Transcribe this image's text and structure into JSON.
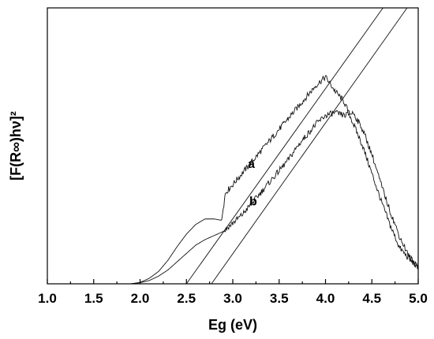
{
  "chart_data": {
    "type": "line",
    "title": "",
    "xlabel": "Eg (eV)",
    "ylabel": "[F(R∞)hν]²",
    "xlim": [
      1.0,
      5.0
    ],
    "ylim": [
      0,
      1.0
    ],
    "x_ticks": [
      "1.0",
      "1.5",
      "2.0",
      "2.5",
      "3.0",
      "3.5",
      "4.0",
      "4.5",
      "5.0"
    ],
    "y_ticks_shown": false,
    "grid": false,
    "legend": "none",
    "series": [
      {
        "name": "a",
        "x": [
          1.9,
          2.0,
          2.1,
          2.2,
          2.3,
          2.4,
          2.5,
          2.6,
          2.7,
          2.8,
          2.88,
          2.92,
          3.0,
          3.1,
          3.2,
          3.3,
          3.4,
          3.5,
          3.6,
          3.7,
          3.8,
          3.9,
          4.0,
          4.1,
          4.2,
          4.3,
          4.4,
          4.5,
          4.6,
          4.7,
          4.8,
          4.9,
          5.0
        ],
        "y": [
          0.0,
          0.005,
          0.02,
          0.045,
          0.085,
          0.135,
          0.18,
          0.215,
          0.235,
          0.235,
          0.23,
          0.33,
          0.36,
          0.4,
          0.44,
          0.48,
          0.52,
          0.56,
          0.6,
          0.64,
          0.68,
          0.72,
          0.75,
          0.7,
          0.66,
          0.58,
          0.5,
          0.4,
          0.3,
          0.21,
          0.13,
          0.09,
          0.06
        ]
      },
      {
        "name": "b",
        "x": [
          1.9,
          2.0,
          2.1,
          2.2,
          2.3,
          2.4,
          2.5,
          2.6,
          2.7,
          2.8,
          2.9,
          3.0,
          3.1,
          3.2,
          3.3,
          3.4,
          3.5,
          3.6,
          3.7,
          3.8,
          3.9,
          4.0,
          4.1,
          4.2,
          4.3,
          4.4,
          4.5,
          4.6,
          4.7,
          4.8,
          4.9,
          5.0
        ],
        "y": [
          0.0,
          0.004,
          0.012,
          0.028,
          0.05,
          0.08,
          0.11,
          0.14,
          0.16,
          0.175,
          0.19,
          0.22,
          0.25,
          0.29,
          0.33,
          0.37,
          0.41,
          0.45,
          0.5,
          0.54,
          0.58,
          0.61,
          0.62,
          0.61,
          0.62,
          0.56,
          0.47,
          0.36,
          0.26,
          0.17,
          0.1,
          0.06
        ]
      }
    ],
    "fit_lines": [
      {
        "series": "a",
        "x": [
          2.5,
          4.62
        ],
        "y": [
          0.0,
          1.0
        ]
      },
      {
        "series": "b",
        "x": [
          2.77,
          4.88
        ],
        "y": [
          0.0,
          1.0
        ]
      }
    ],
    "annotations": [
      {
        "text": "a",
        "x": 3.2,
        "y": 0.42
      },
      {
        "text": "b",
        "x": 3.22,
        "y": 0.285
      }
    ]
  }
}
